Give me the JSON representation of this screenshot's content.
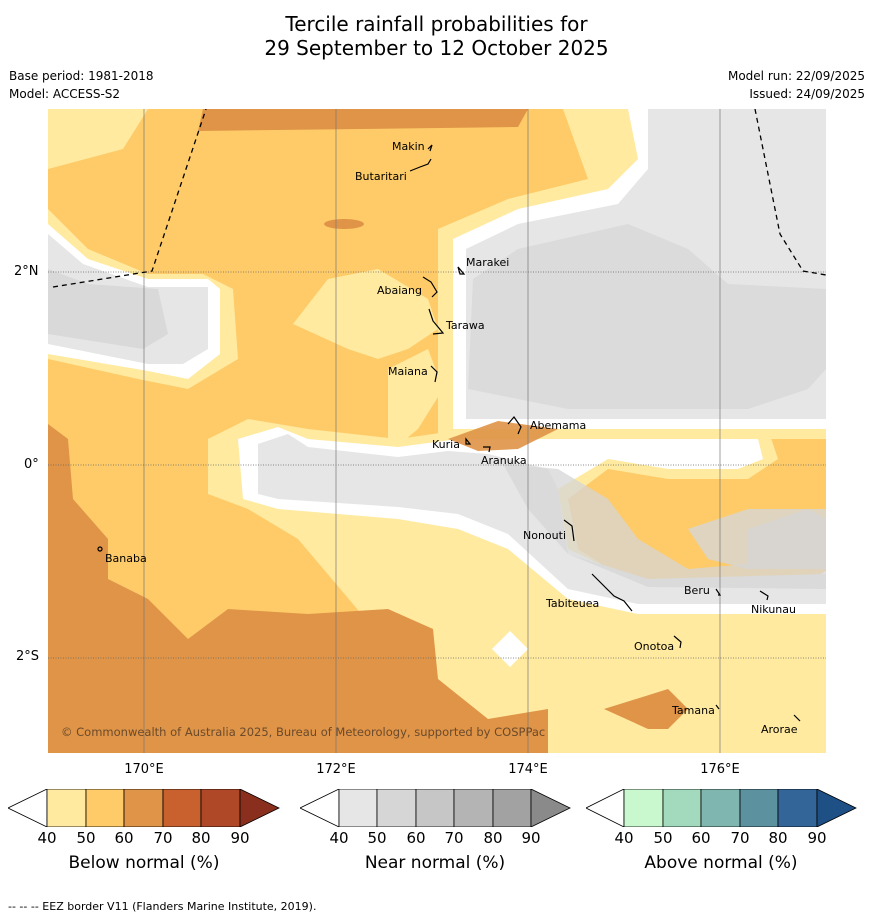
{
  "title": {
    "line1": "Tercile rainfall probabilities for",
    "line2": "29 September to 12 October 2025"
  },
  "meta": {
    "base_period": "Base period: 1981-2018",
    "model": "Model: ACCESS-S2",
    "model_run": "Model run: 22/09/2025",
    "issued": "Issued: 24/09/2025"
  },
  "map": {
    "places": {
      "makin": "Makin",
      "butaritari": "Butaritari",
      "marakei": "Marakei",
      "abaiang": "Abaiang",
      "tarawa": "Tarawa",
      "maiana": "Maiana",
      "abemama": "Abemama",
      "kuria": "Kuria",
      "aranuka": "Aranuka",
      "banaba": "Banaba",
      "nonouti": "Nonouti",
      "beru": "Beru",
      "tabiteuea": "Tabiteuea",
      "nikunau": "Nikunau",
      "onotoa": "Onotoa",
      "tamana": "Tamana",
      "arorae": "Arorae"
    },
    "copyright": "© Commonwealth of Australia 2025, Bureau of Meteorology, supported by COSPPac",
    "lat_labels": {
      "n2": "2°N",
      "eq": "0°",
      "s2": "2°S"
    },
    "lon_labels": {
      "e170": "170°E",
      "e172": "172°E",
      "e174": "174°E",
      "e176": "176°E"
    }
  },
  "colorbars": {
    "below": {
      "title": "Below normal (%)",
      "ticks": [
        "40",
        "50",
        "60",
        "70",
        "80",
        "90"
      ],
      "colors": [
        "#fff",
        "#ffeaa0",
        "#fecb68",
        "#df9447",
        "#c9612e",
        "#ae4827",
        "#8a2f1d"
      ]
    },
    "near": {
      "title": "Near normal (%)",
      "ticks": [
        "40",
        "50",
        "60",
        "70",
        "80",
        "90"
      ],
      "colors": [
        "#fff",
        "#e6e6e6",
        "#d6d6d6",
        "#c6c6c6",
        "#b4b4b4",
        "#a2a2a2",
        "#8a8a8a"
      ]
    },
    "above": {
      "title": "Above normal (%)",
      "ticks": [
        "40",
        "50",
        "60",
        "70",
        "80",
        "90"
      ],
      "colors": [
        "#fff",
        "#c9f7ce",
        "#a3d9bd",
        "#7fb6b0",
        "#5c919f",
        "#336598",
        "#1e4f85"
      ]
    }
  },
  "footer": "--  --  -- EEZ border V11 (Flanders Marine Institute, 2019)."
}
